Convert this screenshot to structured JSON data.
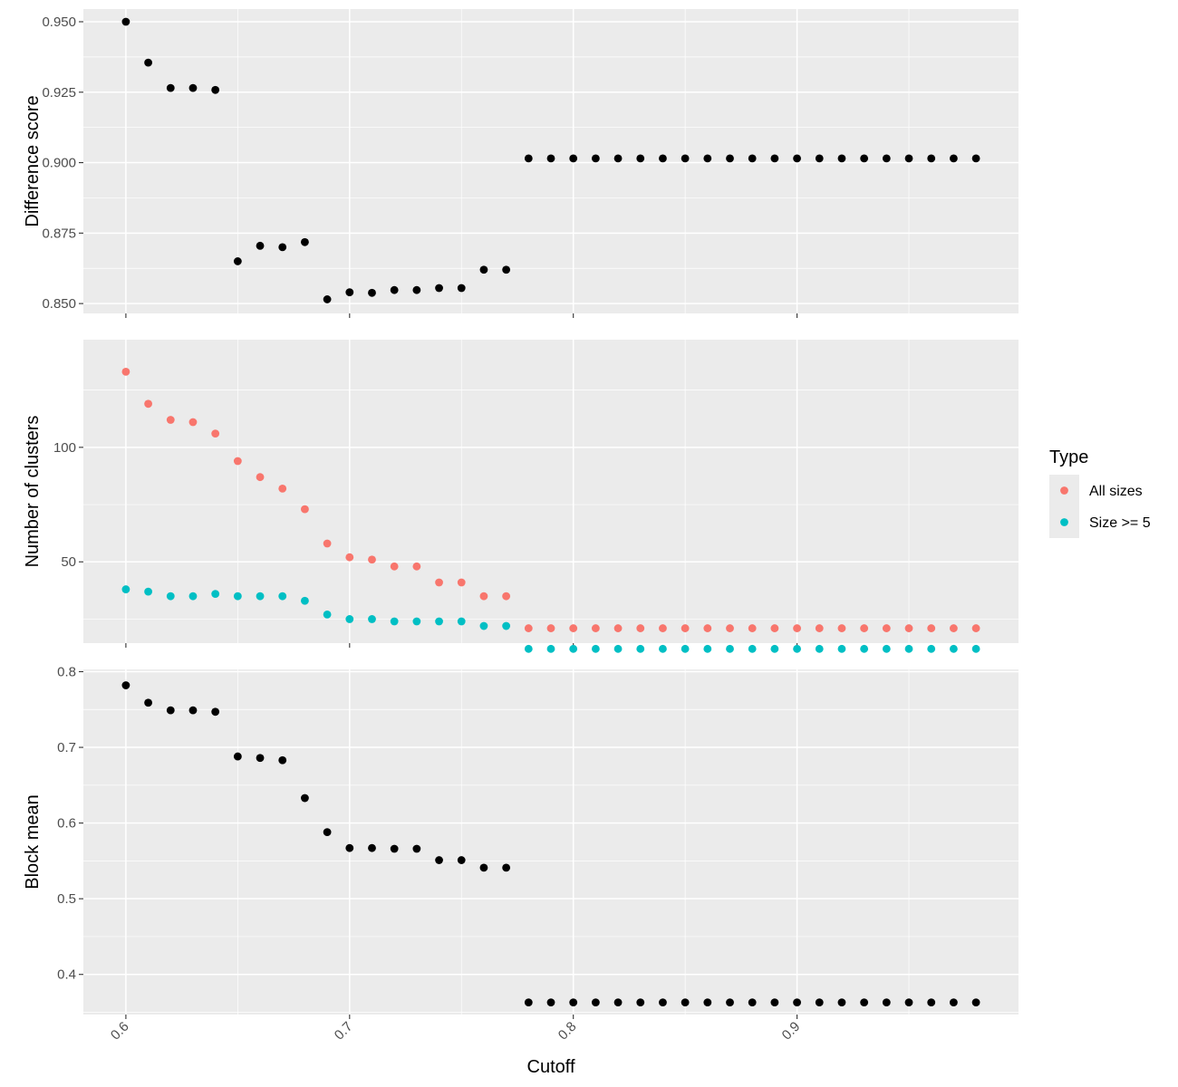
{
  "chart_data": {
    "type": "scatter",
    "xlabel": "Cutoff",
    "x_ticks": [
      0.6,
      0.7,
      0.8,
      0.9
    ],
    "x_tick_labels": [
      "0.6",
      "0.7",
      "0.8",
      "0.9"
    ],
    "xlim": [
      0.581,
      0.999
    ],
    "x": [
      0.6,
      0.61,
      0.62,
      0.63,
      0.64,
      0.65,
      0.66,
      0.67,
      0.68,
      0.69,
      0.7,
      0.71,
      0.72,
      0.73,
      0.74,
      0.75,
      0.76,
      0.77,
      0.78,
      0.79,
      0.8,
      0.81,
      0.82,
      0.83,
      0.84,
      0.85,
      0.86,
      0.87,
      0.88,
      0.89,
      0.9,
      0.91,
      0.92,
      0.93,
      0.94,
      0.95,
      0.96,
      0.97,
      0.98
    ],
    "background_color": "#EBEBEB",
    "grid": true,
    "panels": [
      {
        "ylabel": "Difference score",
        "ylim": [
          0.8465,
          0.9545
        ],
        "y_ticks": [
          0.85,
          0.875,
          0.9,
          0.925,
          0.95
        ],
        "y_tick_labels": [
          "0.850",
          "0.875",
          "0.900",
          "0.925",
          "0.950"
        ],
        "series": [
          {
            "color": "#000000",
            "values": [
              0.95,
              0.9355,
              0.9265,
              0.9265,
              0.9258,
              0.865,
              0.8705,
              0.87,
              0.8718,
              0.8515,
              0.854,
              0.8538,
              0.8548,
              0.8548,
              0.8555,
              0.8555,
              0.862,
              0.862,
              0.9015,
              0.9015,
              0.9015,
              0.9015,
              0.9015,
              0.9015,
              0.9015,
              0.9015,
              0.9015,
              0.9015,
              0.9015,
              0.9015,
              0.9015,
              0.9015,
              0.9015,
              0.9015,
              0.9015,
              0.9015,
              0.9015,
              0.9015,
              0.9015
            ]
          }
        ]
      },
      {
        "ylabel": "Number of clusters",
        "ylim": [
          14.5,
          147
        ],
        "y_ticks": [
          50,
          100
        ],
        "y_tick_labels": [
          "50",
          "100"
        ],
        "series": [
          {
            "name": "All sizes",
            "color": "#F8766D",
            "values": [
              133,
              119,
              112,
              111,
              106,
              94,
              87,
              82,
              73,
              58,
              52,
              51,
              48,
              48,
              41,
              41,
              35,
              35,
              21,
              21,
              21,
              21,
              21,
              21,
              21,
              21,
              21,
              21,
              21,
              21,
              21,
              21,
              21,
              21,
              21,
              21,
              21,
              21,
              21
            ]
          },
          {
            "name": "Size >= 5",
            "color": "#00BFC4",
            "values": [
              38,
              37,
              35,
              35,
              36,
              35,
              35,
              35,
              33,
              27,
              25,
              25,
              24,
              24,
              24,
              24,
              22,
              22,
              12,
              12,
              12,
              12,
              12,
              12,
              12,
              12,
              12,
              12,
              12,
              12,
              12,
              12,
              12,
              12,
              12,
              12,
              12,
              12,
              12
            ]
          }
        ]
      },
      {
        "ylabel": "Block mean",
        "ylim": [
          0.347,
          0.803
        ],
        "y_ticks": [
          0.4,
          0.5,
          0.6,
          0.7,
          0.8
        ],
        "y_tick_labels": [
          "0.4",
          "0.5",
          "0.6",
          "0.7",
          "0.8"
        ],
        "series": [
          {
            "color": "#000000",
            "values": [
              0.782,
              0.759,
              0.749,
              0.749,
              0.747,
              0.688,
              0.686,
              0.683,
              0.633,
              0.588,
              0.567,
              0.567,
              0.566,
              0.566,
              0.551,
              0.551,
              0.541,
              0.541,
              0.363,
              0.363,
              0.363,
              0.363,
              0.363,
              0.363,
              0.363,
              0.363,
              0.363,
              0.363,
              0.363,
              0.363,
              0.363,
              0.363,
              0.363,
              0.363,
              0.363,
              0.363,
              0.363,
              0.363,
              0.363
            ]
          }
        ]
      }
    ],
    "legend": {
      "title": "Type",
      "placement": "right",
      "items": [
        {
          "label": "All sizes",
          "color": "#F8766D"
        },
        {
          "label": "Size >= 5",
          "color": "#00BFC4"
        }
      ]
    }
  }
}
